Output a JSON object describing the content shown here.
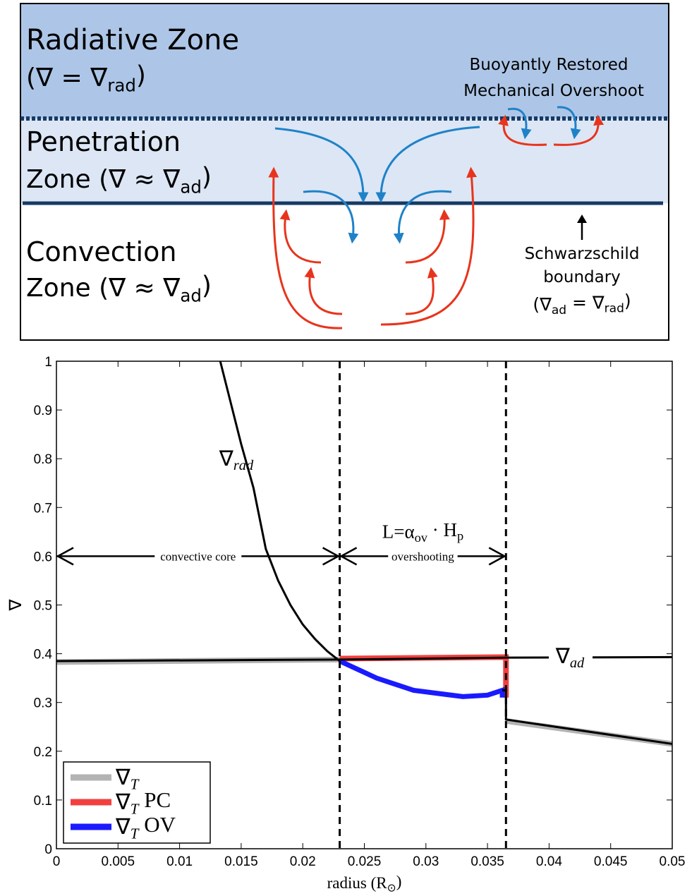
{
  "diagram": {
    "radiative": {
      "title": "Radiative Zone",
      "eq": {
        "pre": "(∇ = ∇",
        "sub": "rad",
        "post": ")"
      }
    },
    "penetration": {
      "title": "Penetration",
      "eq": {
        "pre": "Zone (∇ ≈ ∇",
        "sub": "ad",
        "post": ")"
      }
    },
    "convection": {
      "title": "Convection",
      "eq": {
        "pre": "Zone (∇ ≈ ∇",
        "sub": "ad",
        "post": ")"
      }
    },
    "overshoot": [
      "Buoyantly Restored",
      "Mechanical Overshoot"
    ],
    "boundary": {
      "lines": [
        "Schwarzschild",
        "boundary"
      ],
      "eq": {
        "pre": "(∇",
        "sub": "ad",
        "post": " = ∇",
        "sub2": "rad",
        "post2": ")"
      }
    }
  },
  "chart_data": {
    "type": "line",
    "xlabel": {
      "pre": "radius (R",
      "sub": "⊙",
      "post": ")"
    },
    "ylabel": "∇",
    "xlim": [
      0,
      0.05
    ],
    "ylim": [
      0,
      1
    ],
    "xticks": [
      0,
      0.005,
      0.01,
      0.015,
      0.02,
      0.025,
      0.03,
      0.035,
      0.04,
      0.045,
      0.05
    ],
    "yticks": [
      0,
      0.1,
      0.2,
      0.3,
      0.4,
      0.5,
      0.6,
      0.7,
      0.8,
      0.9,
      1
    ],
    "legend": "lower left",
    "series": [
      {
        "name": {
          "sym": "∇",
          "sub": "T"
        },
        "color": "#b3b3b3",
        "x": [
          0,
          0.023,
          0.03,
          0.0365,
          0.05
        ],
        "values": [
          0.383,
          0.388,
          null,
          0.262,
          0.215
        ]
      },
      {
        "name": {
          "sym": "∇",
          "sub": "T",
          "post": " PC"
        },
        "color": "#f24040",
        "x": [
          0.023,
          0.0365,
          0.0365
        ],
        "values": [
          0.39,
          0.393,
          0.31
        ]
      },
      {
        "name": {
          "sym": "∇",
          "sub": "T",
          "post": " OV"
        },
        "color": "#1a1aff",
        "x": [
          0.023,
          0.026,
          0.029,
          0.033,
          0.035,
          0.0362,
          0.0362
        ],
        "values": [
          0.385,
          0.35,
          0.325,
          0.312,
          0.315,
          0.325,
          0.31
        ]
      }
    ],
    "curves": [
      {
        "label": {
          "sym": "∇",
          "sub": "rad"
        },
        "color": "#000000",
        "x": [
          0.0133,
          0.014,
          0.015,
          0.016,
          0.017,
          0.018,
          0.019,
          0.02,
          0.021,
          0.022,
          0.023
        ],
        "values": [
          1,
          0.93,
          0.83,
          0.74,
          0.615,
          0.55,
          0.5,
          0.46,
          0.43,
          0.405,
          0.385
        ]
      },
      {
        "label": {
          "sym": "∇",
          "sub": "ad"
        },
        "color": "#000000",
        "x": [
          0,
          0.023,
          0.0365,
          0.05
        ],
        "values": [
          0.385,
          0.388,
          0.392,
          0.393
        ]
      },
      {
        "color": "#000000",
        "x": [
          0.0362,
          0.0365,
          0.0365,
          0.05
        ],
        "values": [
          0.325,
          0.325,
          0.265,
          0.215
        ]
      }
    ],
    "vlines": [
      0.023,
      0.0365
    ],
    "arrows": [
      {
        "label": "convective core",
        "x": [
          0,
          0.023
        ],
        "y": 0.6
      },
      {
        "label": "overshooting",
        "x": [
          0.023,
          0.0365
        ],
        "y": 0.6
      }
    ],
    "annotation": {
      "pre": "L=α",
      "sub": "ov",
      "post": " · H",
      "sub2": "p"
    }
  }
}
